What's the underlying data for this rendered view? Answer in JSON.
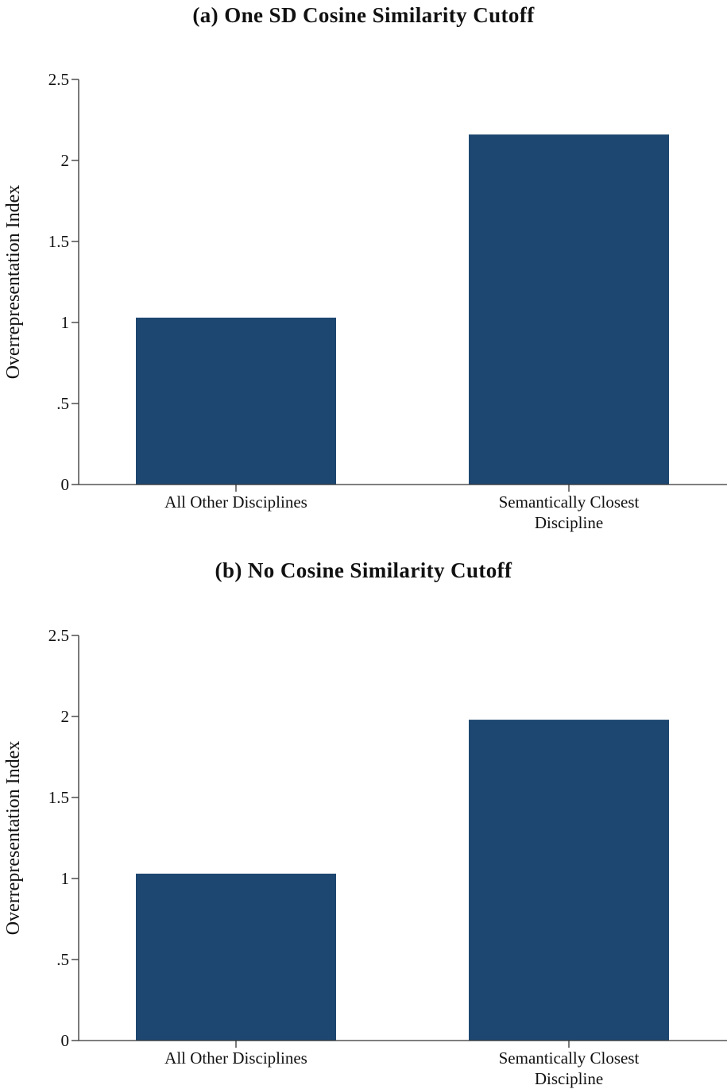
{
  "figure": {
    "panels": [
      {
        "title": "(a) One SD Cosine Similarity Cutoff"
      },
      {
        "title": "(b) No Cosine Similarity Cutoff"
      }
    ]
  },
  "colors": {
    "bar": "#1d4770",
    "axis": "#333333",
    "text": "#111111"
  },
  "chart_data": [
    {
      "type": "bar",
      "title": "(a) One SD Cosine Similarity Cutoff",
      "categories": [
        [
          "All Other Disciplines"
        ],
        [
          "Semantically Closest",
          "Discipline"
        ]
      ],
      "values": [
        1.03,
        2.16
      ],
      "xlabel": "",
      "ylabel": "Overrepresentation Index",
      "ylim": [
        0,
        2.5
      ],
      "yticks": [
        0,
        0.5,
        1,
        1.5,
        2,
        2.5
      ],
      "ytick_labels": [
        "0",
        ".5",
        "1",
        "1.5",
        "2",
        "2.5"
      ],
      "grid": false,
      "legend": "none"
    },
    {
      "type": "bar",
      "title": "(b) No Cosine Similarity Cutoff",
      "categories": [
        [
          "All Other Disciplines"
        ],
        [
          "Semantically Closest",
          "Discipline"
        ]
      ],
      "values": [
        1.03,
        1.98
      ],
      "xlabel": "",
      "ylabel": "Overrepresentation Index",
      "ylim": [
        0,
        2.5
      ],
      "yticks": [
        0,
        0.5,
        1,
        1.5,
        2,
        2.5
      ],
      "ytick_labels": [
        "0",
        ".5",
        "1",
        "1.5",
        "2",
        "2.5"
      ],
      "grid": false,
      "legend": "none"
    }
  ]
}
